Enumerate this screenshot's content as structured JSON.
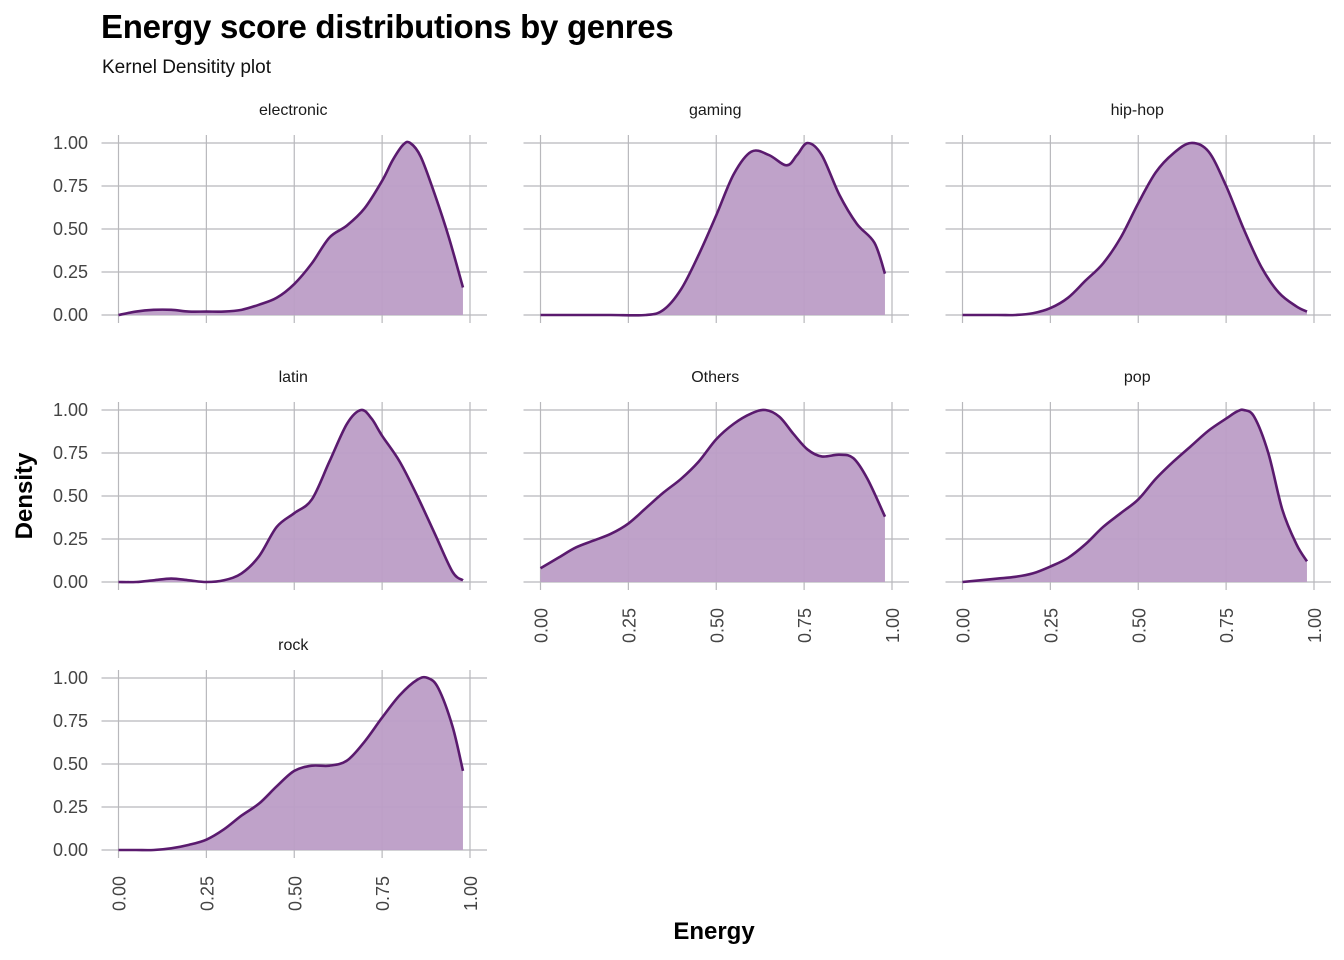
{
  "header": {
    "title": "Energy score distributions by genres",
    "subtitle": "Kernel Densitity plot"
  },
  "colors": {
    "fill": "#bc9dc6",
    "line": "#5a1a6e",
    "grid": "#b8b8bc"
  },
  "chart_data": {
    "type": "area",
    "title": "Energy score distributions by genres",
    "subtitle": "Kernel Densitity plot",
    "xlabel": "Energy",
    "ylabel": "Density",
    "xlim": [
      0,
      1
    ],
    "ylim": [
      0,
      1
    ],
    "x_ticks": [
      "0.00",
      "0.25",
      "0.50",
      "0.75",
      "1.00"
    ],
    "y_ticks": [
      "0.00",
      "0.25",
      "0.50",
      "0.75",
      "1.00"
    ],
    "grid": true,
    "facets": [
      {
        "name": "electronic",
        "points": [
          [
            0.0,
            0.0
          ],
          [
            0.05,
            0.02
          ],
          [
            0.1,
            0.03
          ],
          [
            0.15,
            0.03
          ],
          [
            0.2,
            0.02
          ],
          [
            0.25,
            0.02
          ],
          [
            0.3,
            0.02
          ],
          [
            0.35,
            0.03
          ],
          [
            0.4,
            0.06
          ],
          [
            0.45,
            0.1
          ],
          [
            0.5,
            0.18
          ],
          [
            0.55,
            0.3
          ],
          [
            0.6,
            0.45
          ],
          [
            0.65,
            0.52
          ],
          [
            0.7,
            0.62
          ],
          [
            0.75,
            0.78
          ],
          [
            0.78,
            0.9
          ],
          [
            0.81,
            0.99
          ],
          [
            0.83,
            1.0
          ],
          [
            0.86,
            0.92
          ],
          [
            0.9,
            0.7
          ],
          [
            0.94,
            0.45
          ],
          [
            0.98,
            0.16
          ]
        ]
      },
      {
        "name": "gaming",
        "points": [
          [
            0.0,
            0.0
          ],
          [
            0.1,
            0.0
          ],
          [
            0.2,
            0.0
          ],
          [
            0.3,
            0.0
          ],
          [
            0.35,
            0.03
          ],
          [
            0.4,
            0.15
          ],
          [
            0.45,
            0.35
          ],
          [
            0.5,
            0.58
          ],
          [
            0.55,
            0.82
          ],
          [
            0.6,
            0.95
          ],
          [
            0.65,
            0.93
          ],
          [
            0.7,
            0.87
          ],
          [
            0.73,
            0.93
          ],
          [
            0.76,
            1.0
          ],
          [
            0.8,
            0.93
          ],
          [
            0.85,
            0.7
          ],
          [
            0.9,
            0.53
          ],
          [
            0.95,
            0.42
          ],
          [
            0.98,
            0.24
          ]
        ]
      },
      {
        "name": "hip-hop",
        "points": [
          [
            0.0,
            0.0
          ],
          [
            0.1,
            0.0
          ],
          [
            0.15,
            0.0
          ],
          [
            0.2,
            0.01
          ],
          [
            0.25,
            0.04
          ],
          [
            0.3,
            0.1
          ],
          [
            0.35,
            0.2
          ],
          [
            0.4,
            0.3
          ],
          [
            0.45,
            0.45
          ],
          [
            0.5,
            0.65
          ],
          [
            0.55,
            0.83
          ],
          [
            0.6,
            0.94
          ],
          [
            0.65,
            1.0
          ],
          [
            0.7,
            0.95
          ],
          [
            0.75,
            0.75
          ],
          [
            0.8,
            0.5
          ],
          [
            0.85,
            0.28
          ],
          [
            0.9,
            0.13
          ],
          [
            0.95,
            0.05
          ],
          [
            0.98,
            0.02
          ]
        ]
      },
      {
        "name": "latin",
        "points": [
          [
            0.0,
            0.0
          ],
          [
            0.05,
            0.0
          ],
          [
            0.1,
            0.01
          ],
          [
            0.15,
            0.02
          ],
          [
            0.2,
            0.01
          ],
          [
            0.25,
            0.0
          ],
          [
            0.3,
            0.01
          ],
          [
            0.35,
            0.05
          ],
          [
            0.4,
            0.15
          ],
          [
            0.45,
            0.32
          ],
          [
            0.5,
            0.4
          ],
          [
            0.55,
            0.48
          ],
          [
            0.6,
            0.7
          ],
          [
            0.65,
            0.92
          ],
          [
            0.69,
            1.0
          ],
          [
            0.72,
            0.95
          ],
          [
            0.75,
            0.85
          ],
          [
            0.8,
            0.7
          ],
          [
            0.85,
            0.5
          ],
          [
            0.9,
            0.28
          ],
          [
            0.95,
            0.06
          ],
          [
            0.98,
            0.01
          ]
        ]
      },
      {
        "name": "Others",
        "points": [
          [
            0.0,
            0.08
          ],
          [
            0.05,
            0.14
          ],
          [
            0.1,
            0.2
          ],
          [
            0.15,
            0.24
          ],
          [
            0.2,
            0.28
          ],
          [
            0.25,
            0.34
          ],
          [
            0.3,
            0.43
          ],
          [
            0.35,
            0.52
          ],
          [
            0.4,
            0.6
          ],
          [
            0.45,
            0.7
          ],
          [
            0.5,
            0.83
          ],
          [
            0.55,
            0.92
          ],
          [
            0.6,
            0.98
          ],
          [
            0.64,
            1.0
          ],
          [
            0.68,
            0.96
          ],
          [
            0.72,
            0.86
          ],
          [
            0.76,
            0.77
          ],
          [
            0.8,
            0.73
          ],
          [
            0.85,
            0.74
          ],
          [
            0.89,
            0.72
          ],
          [
            0.93,
            0.6
          ],
          [
            0.98,
            0.38
          ]
        ]
      },
      {
        "name": "pop",
        "points": [
          [
            0.0,
            0.0
          ],
          [
            0.05,
            0.01
          ],
          [
            0.1,
            0.02
          ],
          [
            0.15,
            0.03
          ],
          [
            0.2,
            0.05
          ],
          [
            0.25,
            0.09
          ],
          [
            0.3,
            0.14
          ],
          [
            0.35,
            0.22
          ],
          [
            0.4,
            0.32
          ],
          [
            0.45,
            0.4
          ],
          [
            0.5,
            0.48
          ],
          [
            0.55,
            0.6
          ],
          [
            0.6,
            0.7
          ],
          [
            0.65,
            0.79
          ],
          [
            0.7,
            0.88
          ],
          [
            0.75,
            0.95
          ],
          [
            0.78,
            0.99
          ],
          [
            0.8,
            1.0
          ],
          [
            0.83,
            0.96
          ],
          [
            0.87,
            0.75
          ],
          [
            0.91,
            0.42
          ],
          [
            0.95,
            0.22
          ],
          [
            0.98,
            0.12
          ]
        ]
      },
      {
        "name": "rock",
        "points": [
          [
            0.0,
            0.0
          ],
          [
            0.05,
            0.0
          ],
          [
            0.1,
            0.0
          ],
          [
            0.15,
            0.01
          ],
          [
            0.2,
            0.03
          ],
          [
            0.25,
            0.06
          ],
          [
            0.3,
            0.12
          ],
          [
            0.35,
            0.2
          ],
          [
            0.4,
            0.27
          ],
          [
            0.45,
            0.37
          ],
          [
            0.5,
            0.46
          ],
          [
            0.55,
            0.49
          ],
          [
            0.6,
            0.49
          ],
          [
            0.65,
            0.52
          ],
          [
            0.7,
            0.63
          ],
          [
            0.75,
            0.77
          ],
          [
            0.8,
            0.9
          ],
          [
            0.85,
            0.99
          ],
          [
            0.88,
            1.0
          ],
          [
            0.91,
            0.94
          ],
          [
            0.95,
            0.72
          ],
          [
            0.98,
            0.46
          ]
        ]
      }
    ]
  }
}
